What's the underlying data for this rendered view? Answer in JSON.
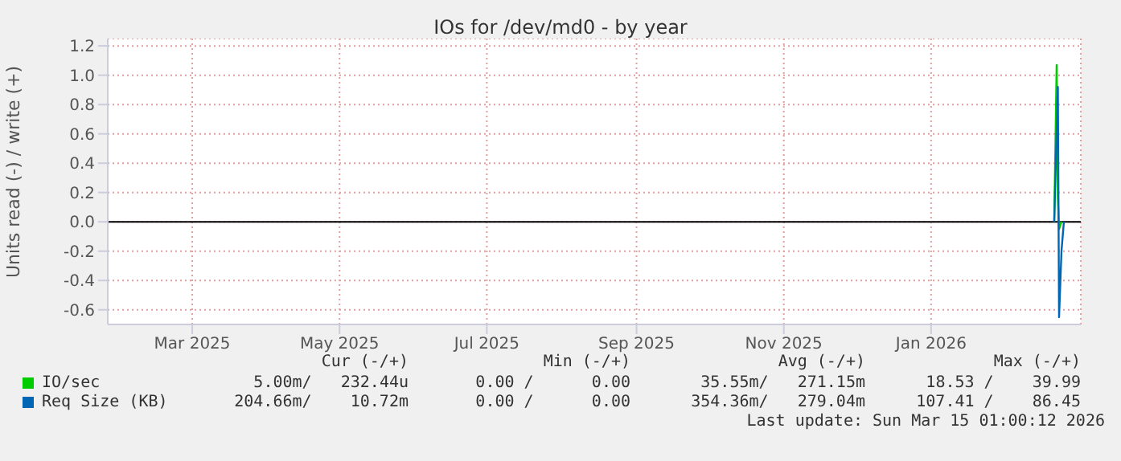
{
  "chart_data": {
    "type": "line",
    "title": "IOs for /dev/md0 - by year",
    "ylabel": "Units read (-) / write (+)",
    "xlim": [
      "2025-01-25",
      "2026-03-04"
    ],
    "xticks": [
      {
        "value": "2025-03-01",
        "label": "Mar 2025"
      },
      {
        "value": "2025-05-01",
        "label": "May 2025"
      },
      {
        "value": "2025-07-01",
        "label": "Jul 2025"
      },
      {
        "value": "2025-09-01",
        "label": "Sep 2025"
      },
      {
        "value": "2025-11-01",
        "label": "Nov 2025"
      },
      {
        "value": "2026-01-01",
        "label": "Jan 2026"
      }
    ],
    "ylim": [
      -0.7,
      1.25
    ],
    "yticks": [
      {
        "value": -0.6,
        "label": "-0.6"
      },
      {
        "value": -0.4,
        "label": "-0.4"
      },
      {
        "value": -0.2,
        "label": "-0.2"
      },
      {
        "value": 0,
        "label": "0.0"
      },
      {
        "value": 0.2,
        "label": "0.2"
      },
      {
        "value": 0.4,
        "label": "0.4"
      },
      {
        "value": 0.6,
        "label": "0.6"
      },
      {
        "value": 0.8,
        "label": "0.8"
      },
      {
        "value": 1,
        "label": "1.0"
      },
      {
        "value": 1.2,
        "label": "1.2"
      }
    ],
    "grid": true,
    "legend": "bottom left",
    "marker": "none",
    "line_style": "solid",
    "ref_lines": [
      {
        "axis": "y",
        "value": 0,
        "color": "#000000"
      }
    ],
    "series": [
      {
        "name": "IO/sec",
        "color": "#00cc00",
        "x": [
          "2026-02-21",
          "2026-02-22",
          "2026-02-22T12:00",
          "2026-02-23",
          "2026-02-24"
        ],
        "values": [
          0,
          1.07,
          0.17,
          -0.05,
          0
        ]
      },
      {
        "name": "Req Size (KB)",
        "color": "#0066b3",
        "x": [
          "2026-02-21",
          "2026-02-22T12:00",
          "2026-02-23",
          "2026-02-24",
          "2026-02-25"
        ],
        "values": [
          0,
          0.92,
          -0.65,
          -0.2,
          0
        ]
      }
    ],
    "annotations": [
      "Cur (-/+)",
      "Min (-/+)",
      "Avg (-/+)",
      "Max (-/+)",
      "5.00m/   232.44u",
      "0.00 /      0.00",
      "35.55m/   271.15m",
      "18.53 /    39.99",
      "204.66m/    10.72m",
      "0.00 /      0.00",
      "354.36m/   279.04m",
      "107.41 /    86.45",
      "Last update: Sun Mar 15 01:00:12 2026"
    ]
  }
}
